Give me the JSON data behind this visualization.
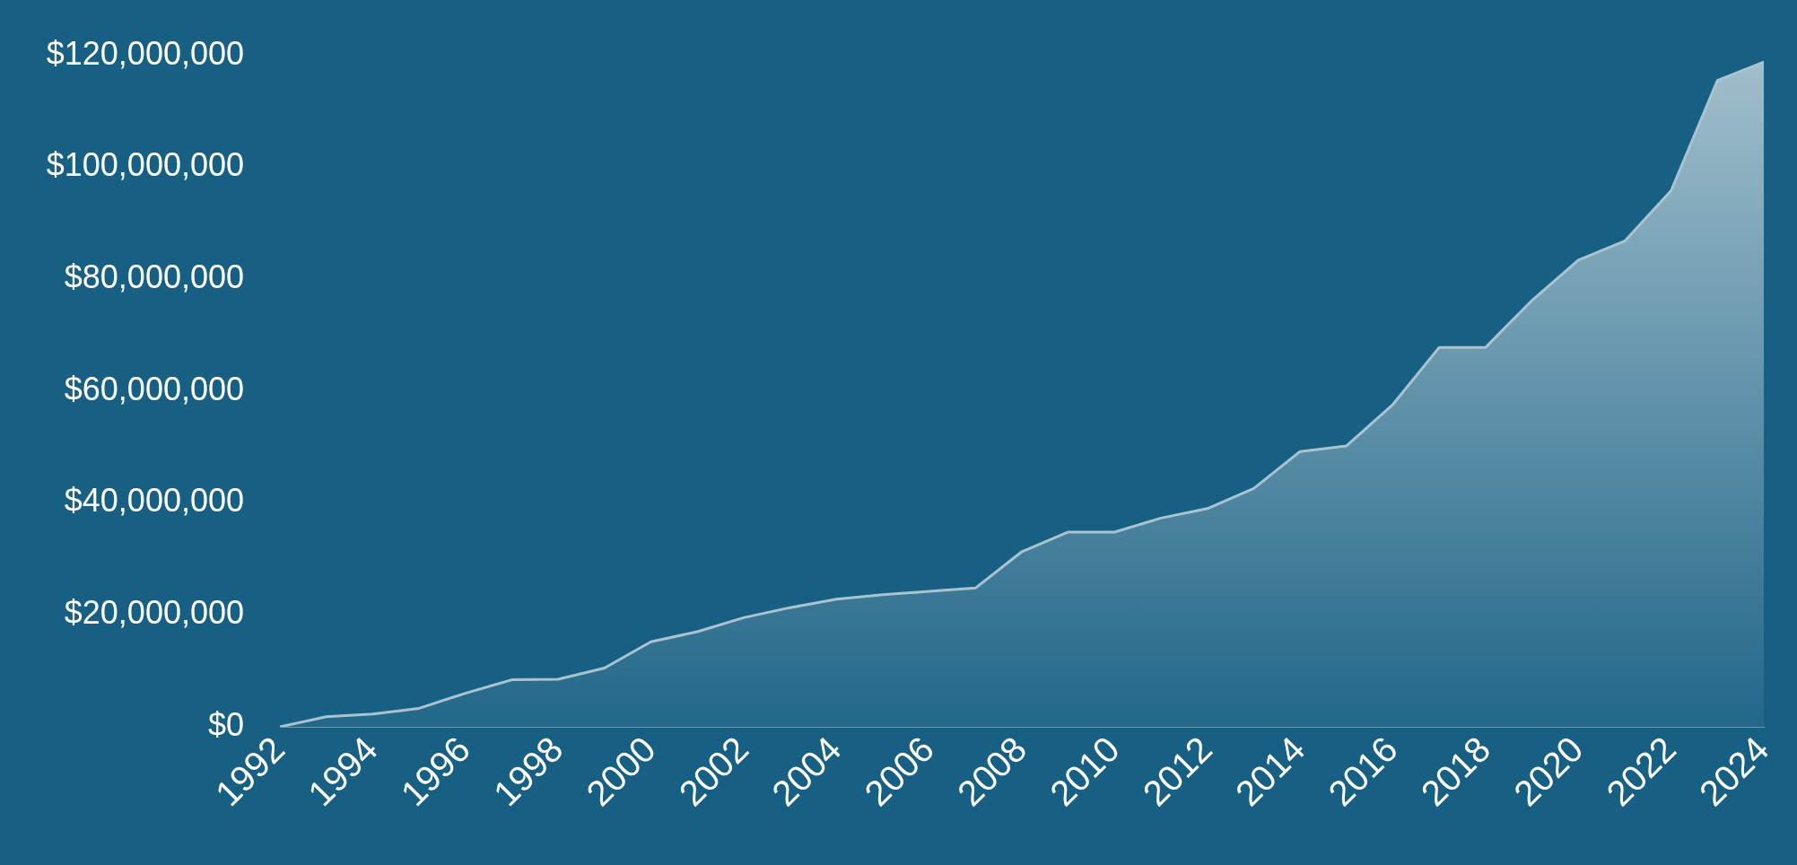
{
  "chart_data": {
    "type": "area",
    "x": [
      1992,
      1993,
      1994,
      1995,
      1996,
      1997,
      1998,
      1999,
      2000,
      2001,
      2002,
      2003,
      2004,
      2005,
      2006,
      2007,
      2008,
      2009,
      2010,
      2011,
      2012,
      2013,
      2014,
      2015,
      2016,
      2017,
      2018,
      2019,
      2020,
      2021,
      2022,
      2023,
      2024
    ],
    "series": [
      {
        "color": "#a9c4d0",
        "values": [
          0,
          1800000,
          2300000,
          3300000,
          6000000,
          8400000,
          8500000,
          10500000,
          15200000,
          17000000,
          19500000,
          21300000,
          22800000,
          23600000,
          24200000,
          24800000,
          31300000,
          34800000,
          34800000,
          37300000,
          39000000,
          42600000,
          49200000,
          50200000,
          57600000,
          67800000,
          67800000,
          76200000,
          83400000,
          86800000,
          95800000,
          115500000,
          118800000
        ]
      }
    ],
    "xlim": [
      1992,
      2024
    ],
    "xticks": [
      1992,
      1994,
      1996,
      1998,
      2000,
      2002,
      2004,
      2006,
      2008,
      2010,
      2012,
      2014,
      2016,
      2018,
      2020,
      2022,
      2024
    ],
    "ylim": [
      0,
      120000000
    ],
    "yticks": [
      {
        "value": 0,
        "label": "$0"
      },
      {
        "value": 20000000,
        "label": "$20,000,000"
      },
      {
        "value": 40000000,
        "label": "$40,000,000"
      },
      {
        "value": 60000000,
        "label": "$60,000,000"
      },
      {
        "value": 80000000,
        "label": "$80,000,000"
      },
      {
        "value": 100000000,
        "label": "$100,000,000"
      },
      {
        "value": 120000000,
        "label": "$120,000,000"
      }
    ],
    "grid": false,
    "legend": false,
    "marker": "none"
  }
}
